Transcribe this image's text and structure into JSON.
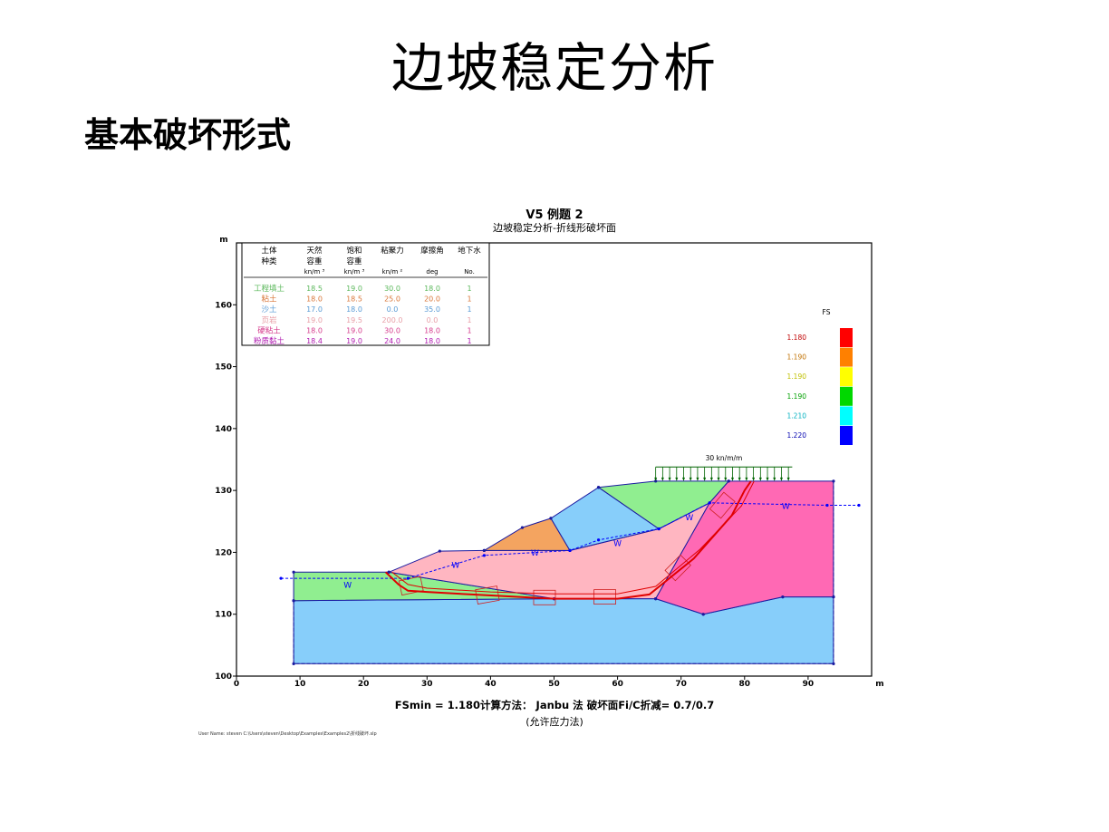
{
  "slide": {
    "title": "边坡稳定分析",
    "subtitle": "基本破坏形式"
  },
  "chart_head": {
    "title": "V5 例题 2",
    "subtitle": "边坡稳定分析-折线形破坏面"
  },
  "footer": {
    "line1": "FSmin = 1.180计算方法： Janbu 法 破坏面Fi/C折减= 0.7/0.7",
    "line2": "(允许应力法)",
    "path": "User Name: steven    C:\\Users\\steven\\Desktop\\Examples\\Examples2\\折线破坏.slp"
  },
  "table": {
    "headers": [
      {
        "line1": "土体",
        "line2": "种类",
        "unit": ""
      },
      {
        "line1": "天然",
        "line2": "容重",
        "unit": "kn/m ³"
      },
      {
        "line1": "饱和",
        "line2": "容重",
        "unit": "kn/m ³"
      },
      {
        "line1": "粘聚力",
        "line2": "",
        "unit": "kn/m ²"
      },
      {
        "line1": "摩擦角",
        "line2": "",
        "unit": "deg"
      },
      {
        "line1": "地下水",
        "line2": "",
        "unit": "No."
      }
    ],
    "rows": [
      {
        "name": "工程填土",
        "gamma": "18.5",
        "gamma_sat": "19.0",
        "c": "30.0",
        "phi": "18.0",
        "water": "1",
        "color": "#5cb85c"
      },
      {
        "name": "粘土",
        "gamma": "18.0",
        "gamma_sat": "18.5",
        "c": "25.0",
        "phi": "20.0",
        "water": "1",
        "color": "#d9773a"
      },
      {
        "name": "沙土",
        "gamma": "17.0",
        "gamma_sat": "18.0",
        "c": "0.0",
        "phi": "35.0",
        "water": "1",
        "color": "#5a9bd5"
      },
      {
        "name": "页岩",
        "gamma": "19.0",
        "gamma_sat": "19.5",
        "c": "200.0",
        "phi": "0.0",
        "water": "1",
        "color": "#e8a0a8"
      },
      {
        "name": "硬粘土",
        "gamma": "18.0",
        "gamma_sat": "19.0",
        "c": "30.0",
        "phi": "18.0",
        "water": "1",
        "color": "#d63c8c"
      },
      {
        "name": "粉质黏土",
        "gamma": "18.4",
        "gamma_sat": "19.0",
        "c": "24.0",
        "phi": "18.0",
        "water": "1",
        "color": "#b01cb0"
      }
    ]
  },
  "legend": {
    "title": "FS",
    "items": [
      {
        "label": "1.180",
        "color": "#ff0000",
        "text_color": "#c00000"
      },
      {
        "label": "1.190",
        "color": "#ff8000",
        "text_color": "#c07000"
      },
      {
        "label": "1.190",
        "color": "#ffff00",
        "text_color": "#c0c000"
      },
      {
        "label": "1.190",
        "color": "#00d800",
        "text_color": "#00a000"
      },
      {
        "label": "1.210",
        "color": "#00ffff",
        "text_color": "#00b0c0"
      },
      {
        "label": "1.220",
        "color": "#0000ff",
        "text_color": "#0000b0"
      }
    ]
  },
  "load_label": "30 kn/m/m",
  "water_symbol": "W",
  "chart_data": {
    "type": "cross-section",
    "xlabel": "m",
    "ylabel": "m",
    "xlim": [
      0,
      100
    ],
    "ylim": [
      100,
      170
    ],
    "x_ticks": [
      0,
      10,
      20,
      30,
      40,
      50,
      60,
      70,
      80,
      90
    ],
    "y_ticks": [
      100,
      110,
      120,
      130,
      140,
      150,
      160
    ],
    "colors": {
      "sand": "#87cefa",
      "fill": "#90ee90",
      "clay": "#f4a460",
      "shale": "#ffb6c1",
      "hard_clay": "#ff69b4",
      "water": "#0000ff",
      "slip": "#e00000",
      "load": "#006400"
    },
    "regions": [
      {
        "name": "sand-base",
        "fill": "#87cefa",
        "points": [
          [
            9,
            102
          ],
          [
            94,
            102
          ],
          [
            94,
            112.8
          ],
          [
            86,
            112.8
          ],
          [
            73.5,
            110
          ],
          [
            66,
            112.5
          ],
          [
            50,
            112.5
          ],
          [
            9,
            112.2
          ]
        ]
      },
      {
        "name": "fill-left",
        "fill": "#90ee90",
        "points": [
          [
            9,
            112.2
          ],
          [
            50,
            112.5
          ],
          [
            24,
            116.8
          ],
          [
            9,
            116.8
          ]
        ]
      },
      {
        "name": "shale",
        "fill": "#ffb6c1",
        "points": [
          [
            24,
            116.8
          ],
          [
            32,
            120.2
          ],
          [
            39,
            120.3
          ],
          [
            52.5,
            120.3
          ],
          [
            66.5,
            123.8
          ],
          [
            74.5,
            128
          ],
          [
            66,
            112.5
          ],
          [
            50,
            112.5
          ]
        ]
      },
      {
        "name": "clay",
        "fill": "#f4a460",
        "points": [
          [
            39,
            120.3
          ],
          [
            45,
            124
          ],
          [
            49.5,
            125.5
          ],
          [
            52.5,
            120.3
          ]
        ]
      },
      {
        "name": "sand-middle",
        "fill": "#87cefa",
        "points": [
          [
            52.5,
            120.3
          ],
          [
            49.5,
            125.5
          ],
          [
            57,
            130.5
          ],
          [
            66.5,
            123.8
          ]
        ]
      },
      {
        "name": "fill-top",
        "fill": "#90ee90",
        "points": [
          [
            57,
            130.5
          ],
          [
            66,
            131.5
          ],
          [
            77.5,
            131.5
          ],
          [
            74.5,
            128
          ],
          [
            66.5,
            123.8
          ]
        ]
      },
      {
        "name": "hard-clay",
        "fill": "#ff69b4",
        "points": [
          [
            74.5,
            128
          ],
          [
            77.5,
            131.5
          ],
          [
            94,
            131.5
          ],
          [
            94,
            112.8
          ],
          [
            86,
            112.8
          ],
          [
            73.5,
            110
          ],
          [
            66,
            112.5
          ]
        ]
      }
    ],
    "water_table": [
      [
        7,
        115.8
      ],
      [
        27,
        115.8
      ],
      [
        39,
        119.5
      ],
      [
        52.5,
        120.3
      ],
      [
        57,
        122
      ],
      [
        66.5,
        123.8
      ],
      [
        74.5,
        128
      ],
      [
        93,
        127.6
      ],
      [
        98,
        127.6
      ]
    ],
    "slip_surface": [
      [
        23.5,
        116.8
      ],
      [
        25.5,
        114.8
      ],
      [
        27,
        113.8
      ],
      [
        30,
        113.6
      ],
      [
        37,
        113.2
      ],
      [
        50,
        112.5
      ],
      [
        60,
        112.5
      ],
      [
        65,
        113.2
      ],
      [
        72,
        119
      ],
      [
        78,
        126
      ],
      [
        80,
        130
      ],
      [
        81,
        131.5
      ]
    ],
    "load_extent": [
      66,
      87.5
    ],
    "load_top": 133.8
  }
}
